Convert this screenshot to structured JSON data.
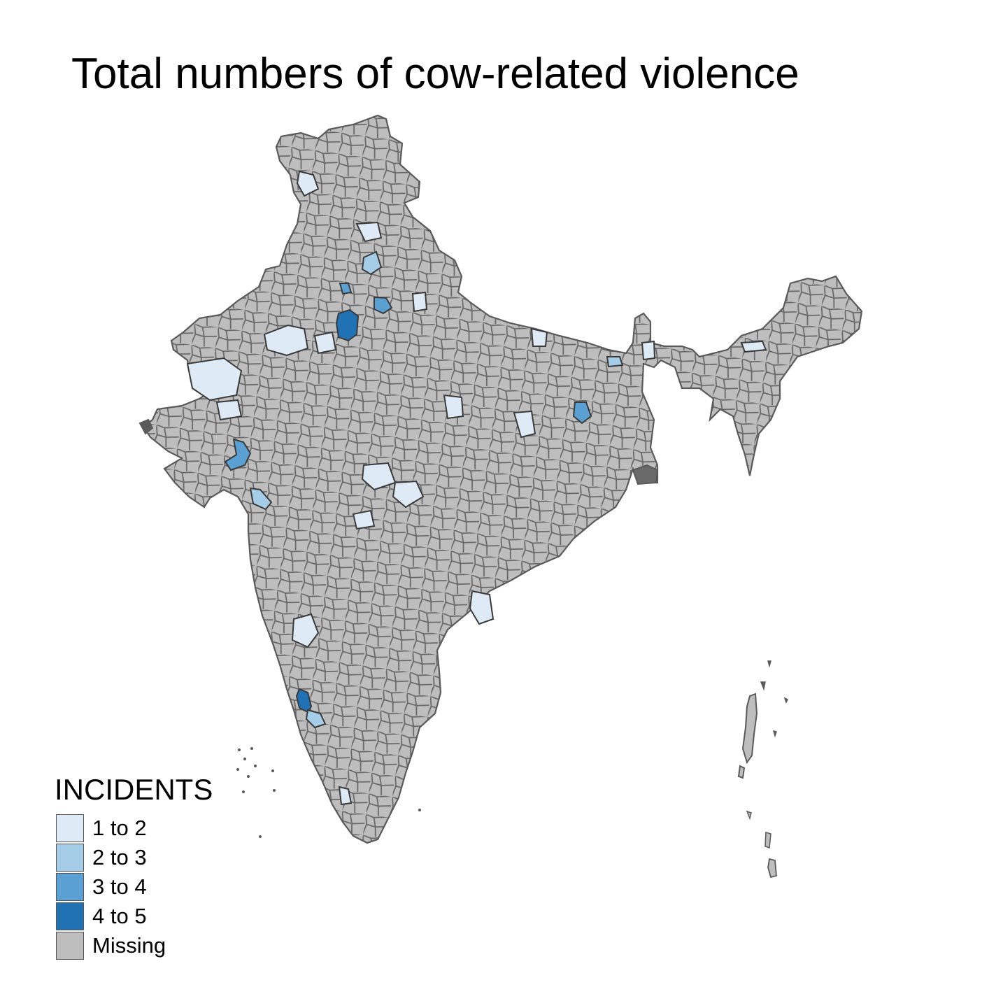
{
  "title": "Total numbers of cow-related violence",
  "legend": {
    "title": "INCIDENTS",
    "items": [
      {
        "label": "1 to 2",
        "color": "#deebf7"
      },
      {
        "label": "2 to 3",
        "color": "#a6cde7"
      },
      {
        "label": "3 to 4",
        "color": "#5aa0d2"
      },
      {
        "label": "4 to 5",
        "color": "#2171b5"
      },
      {
        "label": "Missing",
        "color": "#bebebe"
      }
    ]
  },
  "colors": {
    "missing": "#bebebe",
    "border": "#5a5a5a",
    "background": "#ffffff"
  },
  "regions": [
    {
      "name": "india-mainland",
      "category": "Missing"
    },
    {
      "name": "andaman-nicobar-islands",
      "category": "Missing"
    },
    {
      "name": "lakshadweep-islands",
      "category": "Missing"
    },
    {
      "name": "district-haryana-central",
      "category": "4 to 5"
    },
    {
      "name": "district-karnataka-coast",
      "category": "4 to 5"
    },
    {
      "name": "district-gujarat-east",
      "category": "3 to 4"
    },
    {
      "name": "district-up-west",
      "category": "3 to 4"
    },
    {
      "name": "district-jharkhand",
      "category": "3 to 4"
    },
    {
      "name": "district-haryana-north",
      "category": "3 to 4"
    },
    {
      "name": "district-punjab-south",
      "category": "2 to 3"
    },
    {
      "name": "district-maharashtra-coast",
      "category": "2 to 3"
    },
    {
      "name": "district-karnataka-south",
      "category": "2 to 3"
    },
    {
      "name": "district-bihar-north",
      "category": "2 to 3"
    },
    {
      "name": "district-rajasthan-west",
      "category": "1 to 2"
    },
    {
      "name": "district-rajasthan-north",
      "category": "1 to 2"
    },
    {
      "name": "district-rajasthan-central",
      "category": "1 to 2"
    },
    {
      "name": "district-mp-central",
      "category": "1 to 2"
    },
    {
      "name": "district-mp-east",
      "category": "1 to 2"
    },
    {
      "name": "district-chhattisgarh",
      "category": "1 to 2"
    },
    {
      "name": "district-andhra-coast",
      "category": "1 to 2"
    },
    {
      "name": "district-karnataka-north",
      "category": "1 to 2"
    },
    {
      "name": "district-himachal",
      "category": "1 to 2"
    },
    {
      "name": "district-uttarakhand",
      "category": "1 to 2"
    },
    {
      "name": "district-up-central",
      "category": "1 to 2"
    },
    {
      "name": "district-bihar-south",
      "category": "1 to 2"
    },
    {
      "name": "district-jharkhand-west",
      "category": "1 to 2"
    },
    {
      "name": "district-assam",
      "category": "1 to 2"
    },
    {
      "name": "district-west-bengal-north",
      "category": "1 to 2"
    },
    {
      "name": "district-maharashtra-central",
      "category": "1 to 2"
    },
    {
      "name": "district-kerala",
      "category": "1 to 2"
    },
    {
      "name": "district-gujarat-north",
      "category": "1 to 2"
    }
  ]
}
